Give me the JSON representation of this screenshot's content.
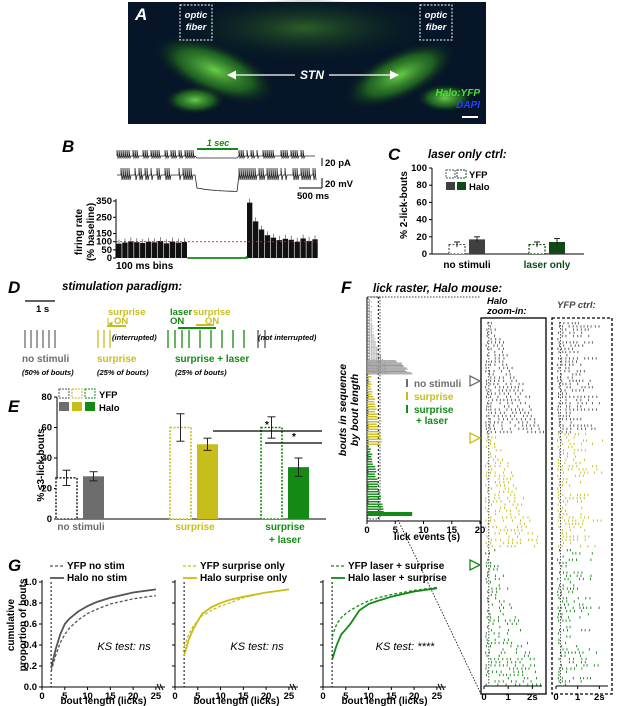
{
  "panels": {
    "A": {
      "letter": "A",
      "fiber_left": [
        "optic",
        "fiber"
      ],
      "fiber_right": [
        "optic",
        "fiber"
      ],
      "stn": "STN",
      "halo_yfp": "Halo:YFP",
      "dapi": "DAPI"
    },
    "B": {
      "letter": "B",
      "sec_label": "1 sec",
      "pa_label": "20 pA",
      "mv_label": "20 mV",
      "ms_label": "500 ms",
      "ylabel": [
        "firing rate",
        "(% baseline)"
      ],
      "yticks": [
        "350",
        "250",
        "150",
        "100",
        "50",
        "0"
      ],
      "bins_label": "100 ms bins"
    },
    "C": {
      "letter": "C",
      "title": "laser only ctrl:",
      "ylabel": "% 2-lick-bouts",
      "yticks": [
        "100",
        "80",
        "60",
        "40",
        "20",
        "0"
      ],
      "legend": [
        "YFP",
        "Halo"
      ],
      "groups": [
        "no stimuli",
        "laser only"
      ]
    },
    "D": {
      "letter": "D",
      "title": "stimulation paradigm:",
      "scale": "1 s",
      "surprise": "surprise",
      "on": "ON",
      "laser": "laser",
      "interrupted": "(interrupted)",
      "not_interrupted": "(not interrupted)",
      "cond_labels": [
        "no stimuli",
        "surprise",
        "surprise + laser"
      ],
      "cond_subs": [
        "(50% of bouts)",
        "(25% of bouts)",
        "(25% of bouts)"
      ]
    },
    "E": {
      "letter": "E",
      "ylabel": "% ≤3-lick-bouts",
      "yticks": [
        "80",
        "60",
        "40",
        "20",
        "0"
      ],
      "legend": [
        "YFP",
        "Halo"
      ],
      "groups": [
        "no stimuli",
        "surprise",
        "surprise",
        "+ laser"
      ],
      "sig": [
        "*",
        "*"
      ]
    },
    "F": {
      "letter": "F",
      "title": "lick raster, Halo mouse:",
      "ylabel": [
        "bouts in sequence",
        "by bout length"
      ],
      "xlabel": "lick events (s)",
      "xticks": [
        "0",
        "5",
        "10",
        "15",
        "20"
      ],
      "legend": [
        "no stimuli",
        "surprise",
        "surprise",
        "+ laser"
      ],
      "zoom_title": [
        "Halo",
        "zoom-in:"
      ],
      "yfp_title": "YFP ctrl:",
      "zoom_ticks": [
        "0",
        "1",
        "2s"
      ]
    },
    "G": {
      "letter": "G",
      "ylabel": [
        "cumulative",
        "proportion of bouts"
      ],
      "yticks": [
        "1.0",
        "0.8",
        "0.6",
        "0.4",
        "0.2",
        "0.0"
      ],
      "xticks": [
        "0",
        "5",
        "10",
        "15",
        "20",
        "25"
      ],
      "xlabel": "bout length (licks)",
      "panels": [
        {
          "legend": [
            "YFP no stim",
            "Halo no stim"
          ],
          "ks": "KS test: ns"
        },
        {
          "legend": [
            "YFP surprise only",
            "Halo surprise only"
          ],
          "ks": "KS test: ns"
        },
        {
          "legend": [
            "YFP laser + surprise",
            "Halo laser + surprise"
          ],
          "ks": "KS test: ****"
        }
      ]
    }
  },
  "colors": {
    "gray": "#6d6d6d",
    "yellow": "#c8be19",
    "green": "#138a14",
    "darkgreen": "#0d4a15",
    "darkgray": "#404040"
  },
  "chart_data": [
    {
      "type": "bar",
      "panel": "B",
      "title": "",
      "xlabel": "100 ms bins",
      "ylabel": "firing rate (% baseline)",
      "ylim": [
        0,
        350
      ],
      "x": [
        "-1.2",
        "-1.1",
        "-1.0",
        "-0.9",
        "-0.8",
        "-0.7",
        "-0.6",
        "-0.5",
        "-0.4",
        "-0.3",
        "-0.2",
        "-0.1",
        "0.0",
        "0.1",
        "0.2",
        "0.3",
        "0.4",
        "0.5",
        "0.6",
        "0.7",
        "0.8",
        "0.9",
        "1.0",
        "1.1",
        "1.2",
        "1.3",
        "1.4",
        "1.5",
        "1.6",
        "1.7",
        "1.8",
        "1.9",
        "2.0",
        "2.1"
      ],
      "values": [
        88,
        95,
        102,
        97,
        92,
        100,
        96,
        104,
        90,
        101,
        94,
        98,
        0,
        0,
        0,
        0,
        0,
        0,
        0,
        0,
        0,
        0,
        340,
        225,
        175,
        140,
        125,
        110,
        118,
        112,
        100,
        120,
        105,
        115
      ]
    },
    {
      "type": "bar",
      "panel": "C",
      "title": "laser only ctrl:",
      "ylabel": "% 2-lick-bouts",
      "categories": [
        "no stimuli",
        "laser only"
      ],
      "ylim": [
        0,
        100
      ],
      "series": [
        {
          "name": "YFP",
          "values": [
            11,
            11
          ]
        },
        {
          "name": "Halo",
          "values": [
            17,
            14
          ]
        }
      ]
    },
    {
      "type": "bar",
      "panel": "E",
      "ylabel": "% ≤3-lick-bouts",
      "categories": [
        "no stimuli",
        "surprise",
        "surprise + laser"
      ],
      "ylim": [
        0,
        80
      ],
      "series": [
        {
          "name": "YFP",
          "values": [
            27,
            60,
            60
          ]
        },
        {
          "name": "Halo",
          "values": [
            28,
            49,
            34
          ]
        }
      ]
    },
    {
      "type": "line",
      "panel": "G1",
      "xlabel": "bout length (licks)",
      "ylabel": "cumulative proportion of bouts",
      "xlim": [
        0,
        27
      ],
      "ylim": [
        0,
        1
      ],
      "x": [
        2,
        3,
        4,
        5,
        6,
        8,
        10,
        12,
        15,
        20,
        25
      ],
      "series": [
        {
          "name": "YFP no stim",
          "values": [
            0.15,
            0.3,
            0.42,
            0.5,
            0.56,
            0.64,
            0.7,
            0.74,
            0.79,
            0.84,
            0.87
          ]
        },
        {
          "name": "Halo no stim",
          "values": [
            0.18,
            0.36,
            0.5,
            0.6,
            0.65,
            0.72,
            0.77,
            0.81,
            0.85,
            0.9,
            0.93
          ]
        }
      ]
    },
    {
      "type": "line",
      "panel": "G2",
      "xlabel": "bout length (licks)",
      "ylabel": "cumulative proportion of bouts",
      "xlim": [
        0,
        27
      ],
      "ylim": [
        0,
        1
      ],
      "x": [
        2,
        3,
        4,
        5,
        6,
        8,
        10,
        12,
        15,
        20,
        25
      ],
      "series": [
        {
          "name": "YFP surprise only",
          "values": [
            0.38,
            0.5,
            0.58,
            0.63,
            0.68,
            0.73,
            0.77,
            0.8,
            0.85,
            0.9,
            0.93
          ]
        },
        {
          "name": "Halo surprise only",
          "values": [
            0.3,
            0.45,
            0.55,
            0.63,
            0.7,
            0.76,
            0.8,
            0.83,
            0.86,
            0.9,
            0.93
          ]
        }
      ]
    },
    {
      "type": "line",
      "panel": "G3",
      "xlabel": "bout length (licks)",
      "ylabel": "cumulative proportion of bouts",
      "xlim": [
        0,
        27
      ],
      "ylim": [
        0,
        1
      ],
      "x": [
        2,
        3,
        4,
        5,
        6,
        8,
        10,
        12,
        15,
        20,
        25
      ],
      "series": [
        {
          "name": "YFP laser + surprise",
          "values": [
            0.48,
            0.6,
            0.66,
            0.7,
            0.73,
            0.78,
            0.82,
            0.85,
            0.88,
            0.92,
            0.95
          ]
        },
        {
          "name": "Halo laser + surprise",
          "values": [
            0.26,
            0.4,
            0.5,
            0.55,
            0.6,
            0.73,
            0.79,
            0.82,
            0.86,
            0.91,
            0.94
          ]
        }
      ]
    }
  ]
}
